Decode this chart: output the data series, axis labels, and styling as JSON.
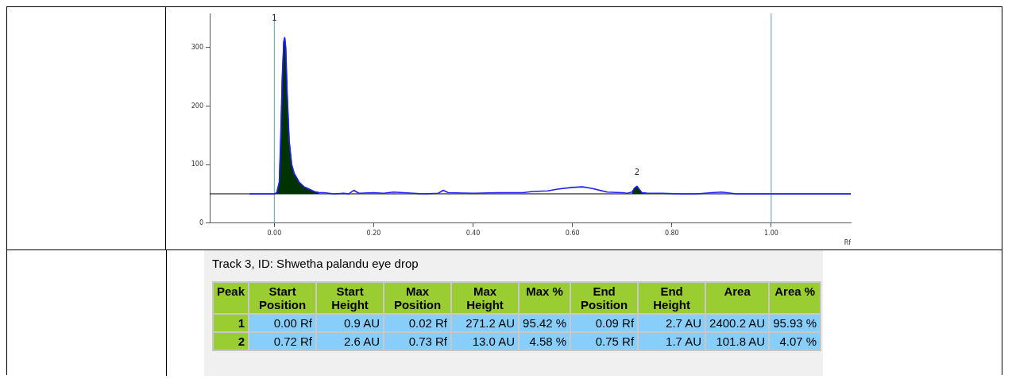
{
  "chart_data": [
    {
      "type": "line",
      "xlabel": "Rf",
      "xlim": [
        -0.13,
        1.16
      ],
      "ylim": [
        0,
        358
      ],
      "xticks": [
        {
          "value": 0,
          "label": "0.00"
        },
        {
          "value": 0.2,
          "label": "0.20"
        },
        {
          "value": 0.4,
          "label": "0.40"
        },
        {
          "value": 0.6,
          "label": "0.60"
        },
        {
          "value": 0.8,
          "label": "0.80"
        },
        {
          "value": 1,
          "label": "1.00"
        }
      ],
      "yticks": [
        0,
        100,
        200,
        300
      ],
      "grid": false,
      "legend": false,
      "marker": "none",
      "series": [
        {
          "type": "area",
          "color": "#003300",
          "x": [
            0.0,
            0.005,
            0.01,
            0.013,
            0.016,
            0.019,
            0.021,
            0.023,
            0.026,
            0.03,
            0.035,
            0.04,
            0.05,
            0.06,
            0.07,
            0.08,
            0.09,
            0.1,
            0.72,
            0.725,
            0.73,
            0.735,
            0.74,
            0.75
          ],
          "values": [
            50,
            52,
            70,
            150,
            250,
            310,
            317,
            300,
            220,
            140,
            100,
            85,
            70,
            62,
            58,
            54,
            52,
            null,
            53,
            60,
            63,
            57,
            52,
            51
          ]
        },
        {
          "type": "line",
          "color": "#2020ff",
          "x": [
            -0.05,
            0.0,
            0.005,
            0.01,
            0.013,
            0.016,
            0.019,
            0.021,
            0.023,
            0.026,
            0.03,
            0.035,
            0.04,
            0.05,
            0.06,
            0.07,
            0.08,
            0.09,
            0.1,
            0.12,
            0.14,
            0.15,
            0.16,
            0.17,
            0.2,
            0.22,
            0.24,
            0.26,
            0.28,
            0.3,
            0.33,
            0.34,
            0.35,
            0.4,
            0.45,
            0.5,
            0.52,
            0.55,
            0.57,
            0.6,
            0.62,
            0.64,
            0.67,
            0.7,
            0.71,
            0.72,
            0.725,
            0.73,
            0.735,
            0.74,
            0.75,
            0.78,
            0.82,
            0.85,
            0.88,
            0.9,
            0.93,
            0.97,
            1.0,
            1.16
          ],
          "values": [
            50,
            50,
            52,
            70,
            150,
            250,
            310,
            317,
            300,
            220,
            140,
            100,
            85,
            70,
            62,
            58,
            54,
            52,
            52,
            50,
            51,
            50,
            56,
            51,
            52,
            51,
            53,
            52,
            51,
            50,
            51,
            56,
            52,
            51,
            52,
            52,
            54,
            55,
            58,
            61,
            62,
            59,
            53,
            52,
            51,
            53,
            60,
            63,
            57,
            52,
            51,
            51,
            50,
            50,
            52,
            53,
            50,
            50,
            50,
            50
          ]
        }
      ],
      "ref_lines": [
        {
          "axis": "y",
          "value": 50,
          "color": "#000000"
        },
        {
          "axis": "x",
          "value": 0,
          "color": "#5f9ea0"
        },
        {
          "axis": "x",
          "value": 1,
          "color": "#5f9ea0"
        }
      ],
      "annotations": [
        {
          "text": "1",
          "x": 0.0,
          "y": 326
        },
        {
          "text": "2",
          "x": 0.73,
          "y": 63
        }
      ]
    },
    {
      "type": "other",
      "title": "Track 3, ID: Shwetha palandu eye drop",
      "categories": [
        "Peak",
        "Start Position",
        "Start Height",
        "Max Position",
        "Max Height",
        "Max %",
        "End Position",
        "End Height",
        "Area",
        "Area %"
      ],
      "y_categories": [
        "1",
        "2"
      ],
      "cell_labels": [
        [
          "0.00 Rf",
          "0.9 AU",
          "0.02 Rf",
          "271.2 AU",
          "95.42 %",
          "0.09 Rf",
          "2.7 AU",
          "2400.2 AU",
          "95.93 %"
        ],
        [
          "0.72 Rf",
          "2.6 AU",
          "0.73 Rf",
          "13.0 AU",
          "4.58 %",
          "0.75 Rf",
          "1.7 AU",
          "101.8 AU",
          "4.07 %"
        ]
      ]
    }
  ]
}
